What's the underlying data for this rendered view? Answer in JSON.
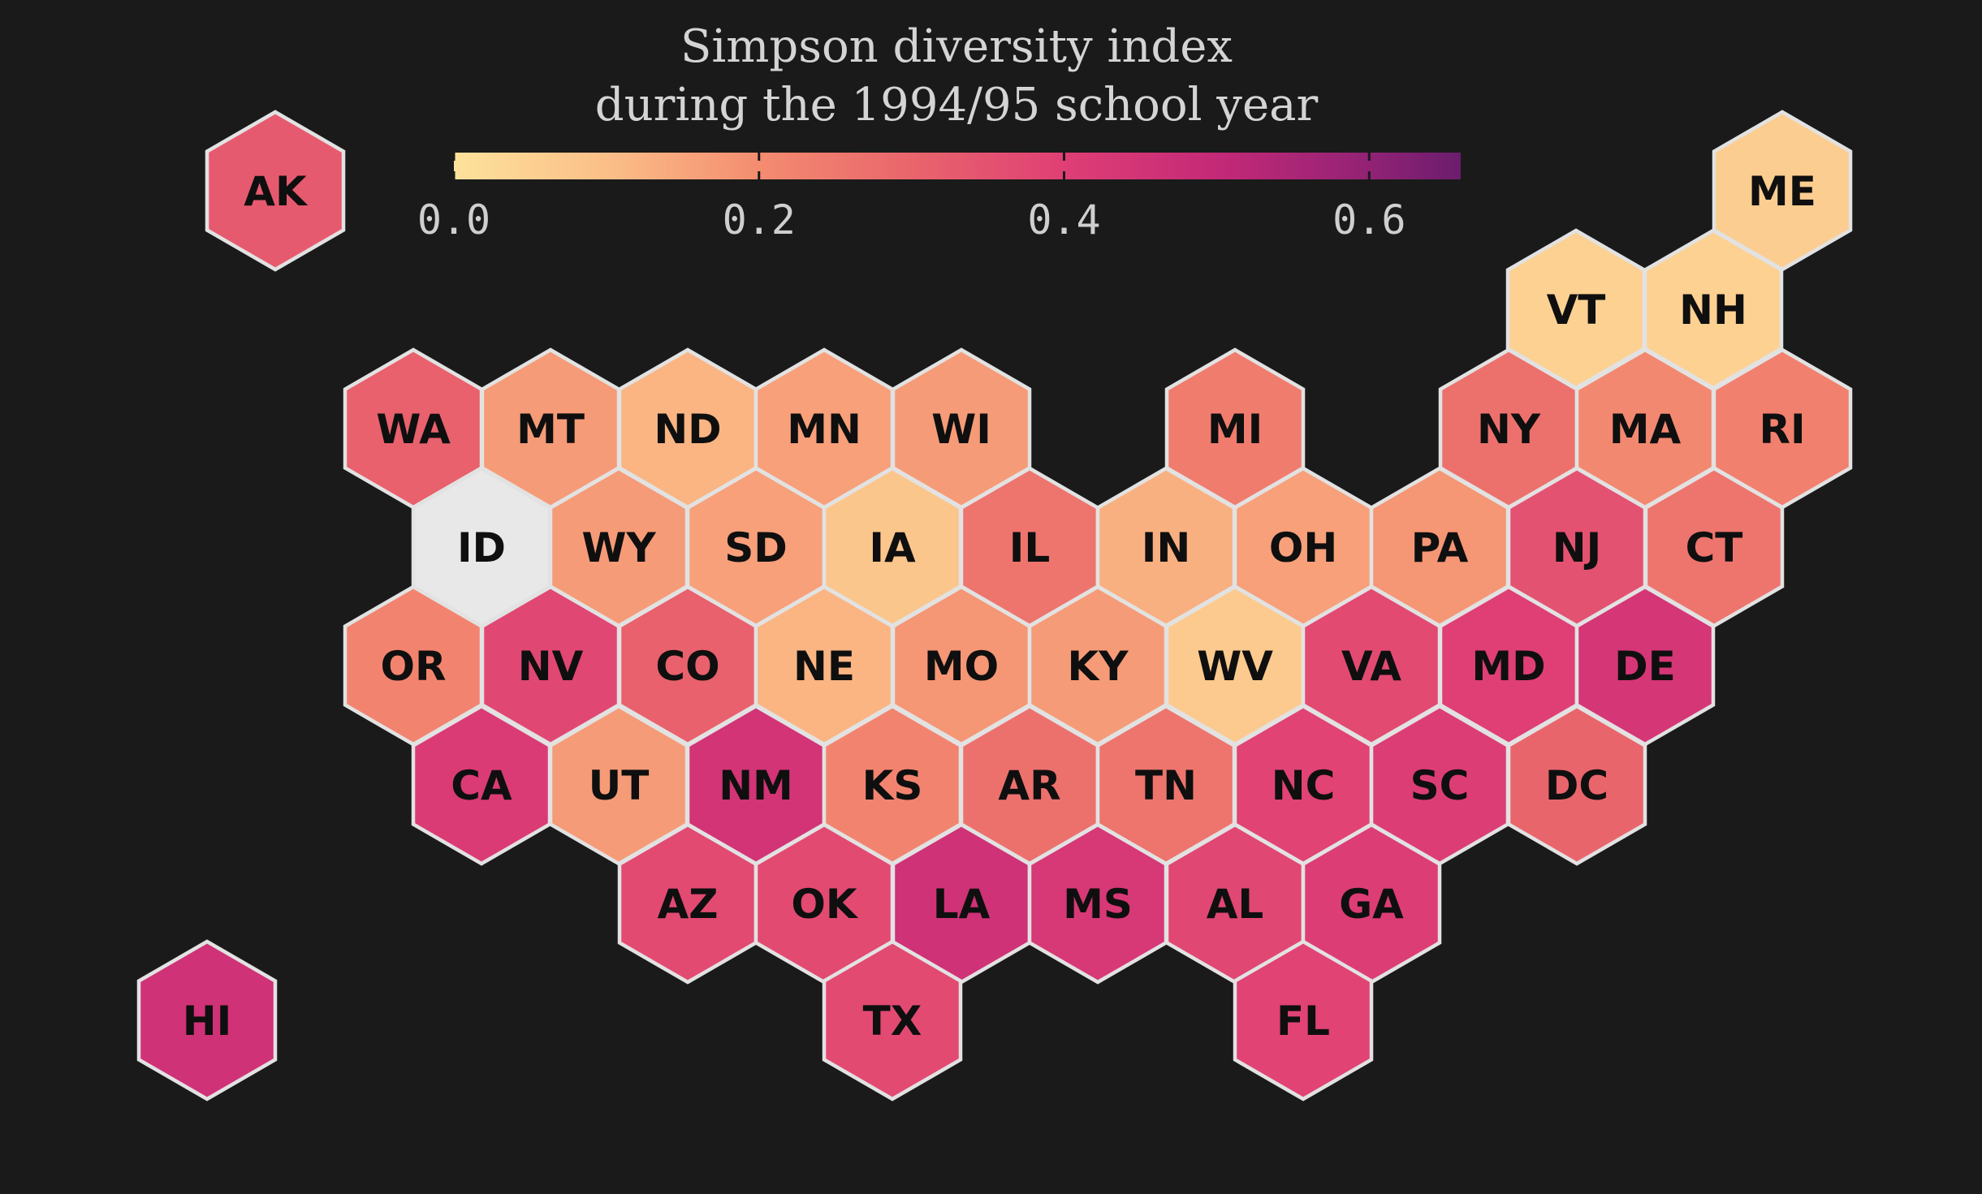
{
  "chart_data": {
    "type": "hexbin-map",
    "title": [
      "Simpson diversity index",
      "during the 1994/95 school year"
    ],
    "colorscale": {
      "min": 0.0,
      "max": 0.66,
      "ticks": [
        0.0,
        0.2,
        0.4,
        0.6
      ],
      "tick_labels": [
        "0.0",
        "0.2",
        "0.4",
        "0.6"
      ],
      "stops": [
        {
          "value": 0.0,
          "color": "#fde29b"
        },
        {
          "value": 0.1,
          "color": "#fbbf88"
        },
        {
          "value": 0.2,
          "color": "#f48c70"
        },
        {
          "value": 0.3,
          "color": "#e9656c"
        },
        {
          "value": 0.4,
          "color": "#df3f75"
        },
        {
          "value": 0.5,
          "color": "#c42977"
        },
        {
          "value": 0.6,
          "color": "#922275"
        },
        {
          "value": 0.66,
          "color": "#6b1d6d"
        }
      ],
      "missing_color": "#e8e8e8"
    },
    "states": [
      {
        "abbr": "AK",
        "value": 0.33
      },
      {
        "abbr": "ME",
        "value": 0.06
      },
      {
        "abbr": "VT",
        "value": 0.05
      },
      {
        "abbr": "NH",
        "value": 0.05
      },
      {
        "abbr": "WA",
        "value": 0.31
      },
      {
        "abbr": "MT",
        "value": 0.17
      },
      {
        "abbr": "ND",
        "value": 0.12
      },
      {
        "abbr": "MN",
        "value": 0.16
      },
      {
        "abbr": "WI",
        "value": 0.17
      },
      {
        "abbr": "MI",
        "value": 0.24
      },
      {
        "abbr": "NY",
        "value": 0.27
      },
      {
        "abbr": "MA",
        "value": 0.21
      },
      {
        "abbr": "RI",
        "value": 0.23
      },
      {
        "abbr": "ID",
        "value": null
      },
      {
        "abbr": "WY",
        "value": 0.17
      },
      {
        "abbr": "SD",
        "value": 0.16
      },
      {
        "abbr": "IA",
        "value": 0.08
      },
      {
        "abbr": "IL",
        "value": 0.26
      },
      {
        "abbr": "IN",
        "value": 0.13
      },
      {
        "abbr": "OH",
        "value": 0.16
      },
      {
        "abbr": "PA",
        "value": 0.18
      },
      {
        "abbr": "NJ",
        "value": 0.35
      },
      {
        "abbr": "CT",
        "value": 0.26
      },
      {
        "abbr": "OR",
        "value": 0.22
      },
      {
        "abbr": "NV",
        "value": 0.38
      },
      {
        "abbr": "CO",
        "value": 0.31
      },
      {
        "abbr": "NE",
        "value": 0.12
      },
      {
        "abbr": "MO",
        "value": 0.18
      },
      {
        "abbr": "KY",
        "value": 0.17
      },
      {
        "abbr": "WV",
        "value": 0.07
      },
      {
        "abbr": "VA",
        "value": 0.37
      },
      {
        "abbr": "MD",
        "value": 0.4
      },
      {
        "abbr": "DE",
        "value": 0.44
      },
      {
        "abbr": "CA",
        "value": 0.42
      },
      {
        "abbr": "UT",
        "value": 0.17
      },
      {
        "abbr": "NM",
        "value": 0.45
      },
      {
        "abbr": "KS",
        "value": 0.22
      },
      {
        "abbr": "AR",
        "value": 0.27
      },
      {
        "abbr": "TN",
        "value": 0.26
      },
      {
        "abbr": "NC",
        "value": 0.39
      },
      {
        "abbr": "SC",
        "value": 0.41
      },
      {
        "abbr": "DC",
        "value": 0.3
      },
      {
        "abbr": "AZ",
        "value": 0.37
      },
      {
        "abbr": "OK",
        "value": 0.37
      },
      {
        "abbr": "LA",
        "value": 0.46
      },
      {
        "abbr": "MS",
        "value": 0.43
      },
      {
        "abbr": "AL",
        "value": 0.38
      },
      {
        "abbr": "GA",
        "value": 0.41
      },
      {
        "abbr": "HI",
        "value": 0.46
      },
      {
        "abbr": "TX",
        "value": 0.37
      },
      {
        "abbr": "FL",
        "value": 0.39
      }
    ]
  }
}
